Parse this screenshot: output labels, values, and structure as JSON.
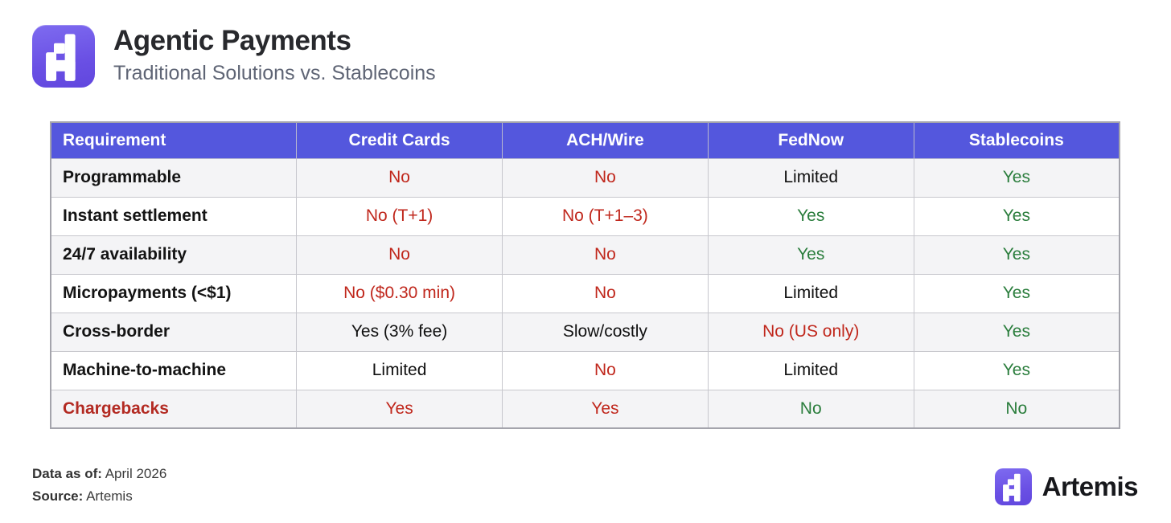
{
  "header": {
    "title": "Agentic Payments",
    "subtitle": "Traditional Solutions vs. Stablecoins"
  },
  "chart_data": {
    "type": "table",
    "title": "Agentic Payments",
    "subtitle": "Traditional Solutions vs. Stablecoins",
    "columns": [
      "Requirement",
      "Credit Cards",
      "ACH/Wire",
      "FedNow",
      "Stablecoins"
    ],
    "rows": [
      [
        "Programmable",
        "No",
        "No",
        "Limited",
        "Yes"
      ],
      [
        "Instant settlement",
        "No (T+1)",
        "No (T+1–3)",
        "Yes",
        "Yes"
      ],
      [
        "24/7 availability",
        "No",
        "No",
        "Yes",
        "Yes"
      ],
      [
        "Micropayments (<$1)",
        "No ($0.30 min)",
        "No",
        "Limited",
        "Yes"
      ],
      [
        "Cross-border",
        "Yes (3% fee)",
        "Slow/costly",
        "No (US only)",
        "Yes"
      ],
      [
        "Machine-to-machine",
        "Limited",
        "No",
        "Limited",
        "Yes"
      ],
      [
        "Chargebacks",
        "Yes",
        "Yes",
        "No",
        "No"
      ]
    ],
    "data_as_of": "April 2026",
    "source": "Artemis"
  },
  "table": {
    "columns": [
      "Requirement",
      "Credit Cards",
      "ACH/Wire",
      "FedNow",
      "Stablecoins"
    ],
    "rows": [
      {
        "label": "Programmable",
        "label_style": "default",
        "cells": [
          {
            "text": "No",
            "style": "red"
          },
          {
            "text": "No",
            "style": "red"
          },
          {
            "text": "Limited",
            "style": "black"
          },
          {
            "text": "Yes",
            "style": "green"
          }
        ]
      },
      {
        "label": "Instant settlement",
        "label_style": "default",
        "cells": [
          {
            "text": "No (T+1)",
            "style": "red"
          },
          {
            "text": "No (T+1–3)",
            "style": "red"
          },
          {
            "text": "Yes",
            "style": "green"
          },
          {
            "text": "Yes",
            "style": "green"
          }
        ]
      },
      {
        "label": "24/7 availability",
        "label_style": "default",
        "cells": [
          {
            "text": "No",
            "style": "red"
          },
          {
            "text": "No",
            "style": "red"
          },
          {
            "text": "Yes",
            "style": "green"
          },
          {
            "text": "Yes",
            "style": "green"
          }
        ]
      },
      {
        "label": "Micropayments (<$1)",
        "label_style": "default",
        "cells": [
          {
            "text": "No ($0.30 min)",
            "style": "red"
          },
          {
            "text": "No",
            "style": "red"
          },
          {
            "text": "Limited",
            "style": "black"
          },
          {
            "text": "Yes",
            "style": "green"
          }
        ]
      },
      {
        "label": "Cross-border",
        "label_style": "default",
        "cells": [
          {
            "text": "Yes (3% fee)",
            "style": "black"
          },
          {
            "text": "Slow/costly",
            "style": "black"
          },
          {
            "text": "No (US only)",
            "style": "red"
          },
          {
            "text": "Yes",
            "style": "green"
          }
        ]
      },
      {
        "label": "Machine-to-machine",
        "label_style": "default",
        "cells": [
          {
            "text": "Limited",
            "style": "black"
          },
          {
            "text": "No",
            "style": "red"
          },
          {
            "text": "Limited",
            "style": "black"
          },
          {
            "text": "Yes",
            "style": "green"
          }
        ]
      },
      {
        "label": "Chargebacks",
        "label_style": "red",
        "cells": [
          {
            "text": "Yes",
            "style": "red"
          },
          {
            "text": "Yes",
            "style": "red"
          },
          {
            "text": "No",
            "style": "green"
          },
          {
            "text": "No",
            "style": "green"
          }
        ]
      }
    ]
  },
  "footer": {
    "data_as_of_label": "Data as of:",
    "data_as_of_value": "April 2026",
    "source_label": "Source:",
    "source_value": "Artemis",
    "brand_wordmark": "Artemis"
  },
  "colors": {
    "header_bg": "#5457dd",
    "accent_purple": "#6c55e6",
    "red": "#c0271c",
    "dark_red": "#b32a22",
    "green": "#2a7d3c",
    "row_alt_bg": "#f4f4f6"
  }
}
